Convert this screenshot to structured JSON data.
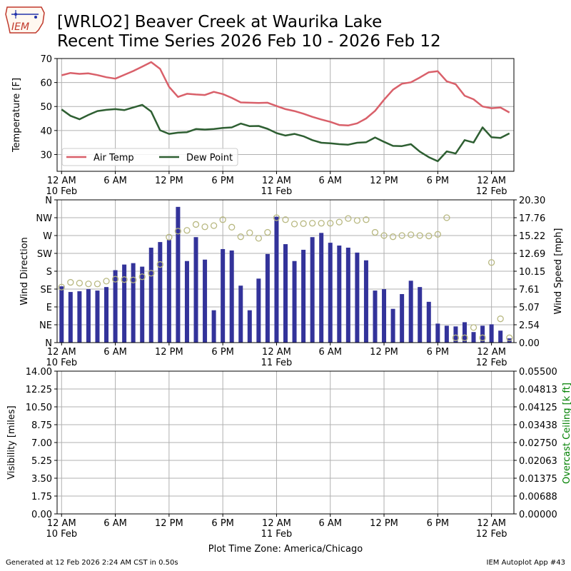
{
  "header": {
    "title_line1": "[WRLO2] Beaver Creek at Waurika Lake",
    "title_line2": "Recent Time Series 2026 Feb 10 - 2026 Feb 12",
    "logo_text": "IEM"
  },
  "footer": {
    "generated": "Generated at 12 Feb 2026 2:24 AM CST in 0.50s",
    "app": "IEM Autoplot App #43",
    "timezone_label": "Plot Time Zone: America/Chicago"
  },
  "colors": {
    "air_temp": "#d9606a",
    "dew_point": "#2e5f32",
    "wind_speed_bar": "#33339a",
    "wind_dir_marker": "#b8b880",
    "ceiling_label": "#008000",
    "grid": "#b0b0b0"
  },
  "x_ticks": [
    {
      "h": 0,
      "line1": "12 AM",
      "line2": "10 Feb"
    },
    {
      "h": 6,
      "line1": "6 AM",
      "line2": ""
    },
    {
      "h": 12,
      "line1": "12 PM",
      "line2": ""
    },
    {
      "h": 18,
      "line1": "6 PM",
      "line2": ""
    },
    {
      "h": 24,
      "line1": "12 AM",
      "line2": "11 Feb"
    },
    {
      "h": 30,
      "line1": "6 AM",
      "line2": ""
    },
    {
      "h": 36,
      "line1": "12 PM",
      "line2": ""
    },
    {
      "h": 42,
      "line1": "6 PM",
      "line2": ""
    },
    {
      "h": 48,
      "line1": "12 AM",
      "line2": "12 Feb"
    }
  ],
  "x_range_hours": [
    -0.5,
    50.5
  ],
  "chart_data": [
    {
      "type": "line",
      "ylabel": "Temperature [F]",
      "ylim": [
        23,
        70
      ],
      "yticks": [
        30,
        40,
        50,
        60,
        70
      ],
      "grid": true,
      "legend_placement": "lower-left",
      "x": [
        0,
        1,
        2,
        3,
        4,
        5,
        6,
        7,
        8,
        9,
        10,
        11,
        12,
        13,
        14,
        15,
        16,
        17,
        18,
        19,
        20,
        21,
        22,
        23,
        24,
        25,
        26,
        27,
        28,
        29,
        30,
        31,
        32,
        33,
        34,
        35,
        36,
        37,
        38,
        39,
        40,
        41,
        42,
        43,
        44,
        45,
        46,
        47,
        48,
        49,
        50
      ],
      "series": [
        {
          "name": "Air Temp",
          "values": [
            63.0,
            64.0,
            63.6,
            63.8,
            63.1,
            62.2,
            61.6,
            63.2,
            64.8,
            66.6,
            68.5,
            65.7,
            58.2,
            54.0,
            55.3,
            55.0,
            54.8,
            56.1,
            55.2,
            53.6,
            51.7,
            51.6,
            51.5,
            51.6,
            50.2,
            48.9,
            48.1,
            47.0,
            45.7,
            44.6,
            43.6,
            42.3,
            42.1,
            43.0,
            45.0,
            48.2,
            52.8,
            57.0,
            59.5,
            60.1,
            62.1,
            64.3,
            64.7,
            60.5,
            59.3,
            54.5,
            53.0,
            50.0,
            49.3,
            49.6,
            47.5
          ]
        },
        {
          "name": "Dew Point",
          "values": [
            48.8,
            46.1,
            44.7,
            46.5,
            48.1,
            48.6,
            48.9,
            48.5,
            49.6,
            50.7,
            47.9,
            40.1,
            38.6,
            39.1,
            39.3,
            40.6,
            40.4,
            40.6,
            41.1,
            41.3,
            42.9,
            41.8,
            41.9,
            40.7,
            38.9,
            37.9,
            38.6,
            37.6,
            36.0,
            34.9,
            34.7,
            34.3,
            34.1,
            34.9,
            35.1,
            37.1,
            35.3,
            33.6,
            33.5,
            34.3,
            31.2,
            28.9,
            27.2,
            31.3,
            30.4,
            36.0,
            35.0,
            41.3,
            37.2,
            36.9,
            38.8
          ]
        }
      ]
    },
    {
      "type": "bar",
      "ylabel_left": "Wind Direction",
      "ylabel_right": "Wind Speed [mph]",
      "direction_ticks": [
        "N",
        "NE",
        "E",
        "SE",
        "S",
        "SW",
        "W",
        "NW",
        "N"
      ],
      "direction_values": [
        0,
        45,
        90,
        135,
        180,
        225,
        270,
        315,
        360
      ],
      "speed_ticks": [
        "0.00",
        "2.54",
        "5.07",
        "7.61",
        "10.15",
        "12.69",
        "15.22",
        "17.76",
        "20.30"
      ],
      "speed_ylim": [
        0,
        20.3
      ],
      "grid": true,
      "x": [
        0,
        1,
        2,
        3,
        4,
        5,
        6,
        7,
        8,
        9,
        10,
        11,
        12,
        13,
        14,
        15,
        16,
        17,
        18,
        19,
        20,
        21,
        22,
        23,
        24,
        25,
        26,
        27,
        28,
        29,
        30,
        31,
        32,
        33,
        34,
        35,
        36,
        37,
        38,
        39,
        40,
        41,
        42,
        43,
        44,
        45,
        46,
        47,
        48,
        49,
        50
      ],
      "series": [
        {
          "name": "Wind Speed",
          "values": [
            8.0,
            7.2,
            7.3,
            7.6,
            7.4,
            7.9,
            10.3,
            11.1,
            11.3,
            10.8,
            13.5,
            14.3,
            14.6,
            19.3,
            11.6,
            15.0,
            11.8,
            4.6,
            13.3,
            13.1,
            8.1,
            4.6,
            9.1,
            12.6,
            17.9,
            14.0,
            11.6,
            13.2,
            15.0,
            15.6,
            14.2,
            13.8,
            13.5,
            12.8,
            11.7,
            7.4,
            7.6,
            4.8,
            6.9,
            8.8,
            7.9,
            5.8,
            2.7,
            2.4,
            2.3,
            2.9,
            1.5,
            2.4,
            2.6,
            1.7,
            0.6
          ]
        },
        {
          "name": "Wind Direction",
          "values": [
            140,
            152,
            150,
            148,
            148,
            155,
            160,
            159,
            158,
            166,
            175,
            197,
            266,
            281,
            283,
            298,
            292,
            295,
            310,
            291,
            267,
            277,
            263,
            278,
            315,
            310,
            299,
            300,
            301,
            301,
            301,
            304,
            313,
            308,
            310,
            278,
            270,
            267,
            270,
            272,
            270,
            269,
            273,
            315,
            12,
            12,
            38,
            12,
            202,
            60,
            12
          ]
        }
      ]
    },
    {
      "type": "line",
      "ylabel_left": "Visibility [miles]",
      "ylabel_right": "Overcast Ceiling [k ft]",
      "visibility_ticks": [
        "0.00",
        "1.75",
        "3.50",
        "5.25",
        "7.00",
        "8.75",
        "10.50",
        "12.25",
        "14.00"
      ],
      "visibility_ylim": [
        0,
        14
      ],
      "ceiling_ticks": [
        "0.00000",
        "0.00688",
        "0.01375",
        "0.02063",
        "0.02750",
        "0.03438",
        "0.04125",
        "0.04813",
        "0.05500"
      ],
      "ceiling_ylim": [
        0,
        0.055
      ],
      "grid": true,
      "series": []
    }
  ]
}
